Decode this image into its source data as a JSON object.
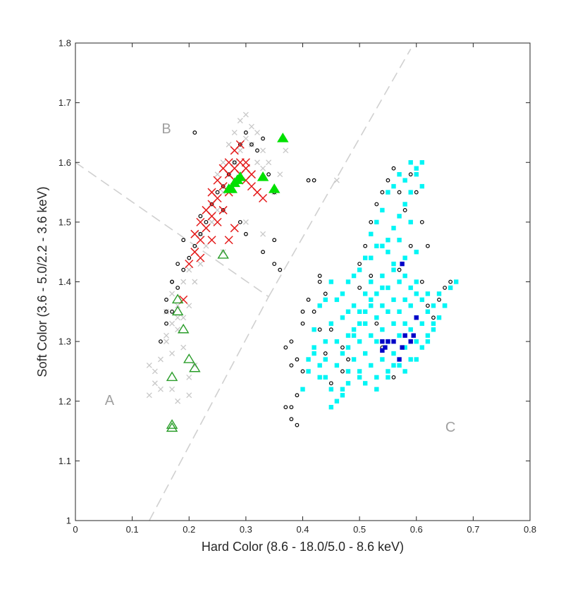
{
  "chart_data": {
    "type": "scatter",
    "xlabel": "Hard Color (8.6 - 18.0/5.0 - 8.6 keV)",
    "ylabel": "Soft Color (3.6 - 5.0/2.2 - 3.6 keV)",
    "xlim": [
      0,
      0.8
    ],
    "ylim": [
      1,
      1.8
    ],
    "xticks": [
      "0",
      "0.1",
      "0.2",
      "0.3",
      "0.4",
      "0.5",
      "0.6",
      "0.7",
      "0.8"
    ],
    "yticks": [
      "1",
      "1.1",
      "1.2",
      "1.3",
      "1.4",
      "1.5",
      "1.6",
      "1.7",
      "1.8"
    ],
    "grid": false,
    "region_labels": [
      {
        "text": "A",
        "x": 0.06,
        "y": 1.2
      },
      {
        "text": "B",
        "x": 0.16,
        "y": 1.655
      },
      {
        "text": "C",
        "x": 0.66,
        "y": 1.155
      }
    ],
    "divider_lines": [
      {
        "x": [
          0,
          0.34
        ],
        "y": [
          1.6,
          1.375
        ]
      },
      {
        "x": [
          0.13,
          0.34
        ],
        "y": [
          1.0,
          1.375
        ]
      },
      {
        "x": [
          0.34,
          0.59
        ],
        "y": [
          1.375,
          1.79
        ]
      }
    ],
    "series": [
      {
        "marker": "gray-x",
        "color": "#c8c8c8",
        "x": [
          0.13,
          0.14,
          0.15,
          0.16,
          0.16,
          0.17,
          0.17,
          0.18,
          0.18,
          0.19,
          0.19,
          0.2,
          0.2,
          0.21,
          0.21,
          0.22,
          0.22,
          0.23,
          0.23,
          0.24,
          0.24,
          0.25,
          0.25,
          0.26,
          0.26,
          0.27,
          0.27,
          0.28,
          0.28,
          0.29,
          0.29,
          0.3,
          0.3,
          0.31,
          0.31,
          0.32,
          0.32,
          0.33,
          0.33,
          0.34,
          0.35,
          0.36,
          0.37,
          0.26,
          0.3,
          0.33,
          0.46,
          0.15,
          0.2,
          0.18,
          0.17,
          0.19,
          0.16,
          0.2,
          0.21,
          0.17,
          0.18,
          0.14,
          0.13
        ],
        "y": [
          1.26,
          1.25,
          1.27,
          1.3,
          1.35,
          1.33,
          1.38,
          1.32,
          1.36,
          1.34,
          1.4,
          1.36,
          1.42,
          1.4,
          1.45,
          1.43,
          1.48,
          1.46,
          1.52,
          1.5,
          1.55,
          1.52,
          1.58,
          1.55,
          1.6,
          1.58,
          1.63,
          1.6,
          1.65,
          1.62,
          1.67,
          1.64,
          1.68,
          1.63,
          1.66,
          1.6,
          1.65,
          1.62,
          1.59,
          1.6,
          1.55,
          1.58,
          1.62,
          1.45,
          1.5,
          1.48,
          1.57,
          1.22,
          1.24,
          1.2,
          1.28,
          1.29,
          1.31,
          1.21,
          1.26,
          1.22,
          1.34,
          1.23,
          1.21
        ]
      },
      {
        "marker": "black-circle",
        "color": "#000000",
        "x": [
          0.15,
          0.16,
          0.16,
          0.17,
          0.17,
          0.18,
          0.19,
          0.2,
          0.21,
          0.22,
          0.22,
          0.23,
          0.24,
          0.25,
          0.26,
          0.27,
          0.28,
          0.29,
          0.3,
          0.31,
          0.32,
          0.33,
          0.34,
          0.35,
          0.26,
          0.29,
          0.3,
          0.33,
          0.35,
          0.36,
          0.41,
          0.42,
          0.43,
          0.38,
          0.39,
          0.4,
          0.37,
          0.38,
          0.39,
          0.4,
          0.41,
          0.42,
          0.43,
          0.44,
          0.45,
          0.46,
          0.47,
          0.48,
          0.5,
          0.51,
          0.52,
          0.53,
          0.54,
          0.55,
          0.56,
          0.57,
          0.58,
          0.59,
          0.6,
          0.61,
          0.62,
          0.57,
          0.58,
          0.59,
          0.6,
          0.61,
          0.62,
          0.63,
          0.64,
          0.65,
          0.66,
          0.55,
          0.56,
          0.57,
          0.5,
          0.52,
          0.53,
          0.54,
          0.56,
          0.58,
          0.6,
          0.45,
          0.47,
          0.38,
          0.39,
          0.4,
          0.37,
          0.38,
          0.45,
          0.44,
          0.43,
          0.35,
          0.21,
          0.19,
          0.18,
          0.17,
          0.16
        ],
        "y": [
          1.3,
          1.33,
          1.37,
          1.35,
          1.4,
          1.39,
          1.42,
          1.44,
          1.46,
          1.48,
          1.51,
          1.5,
          1.53,
          1.55,
          1.56,
          1.58,
          1.6,
          1.63,
          1.65,
          1.63,
          1.62,
          1.64,
          1.58,
          1.55,
          1.52,
          1.5,
          1.48,
          1.45,
          1.43,
          1.42,
          1.57,
          1.57,
          1.41,
          1.3,
          1.27,
          1.25,
          1.19,
          1.17,
          1.16,
          1.33,
          1.37,
          1.35,
          1.32,
          1.28,
          1.22,
          1.2,
          1.25,
          1.27,
          1.43,
          1.46,
          1.5,
          1.53,
          1.55,
          1.57,
          1.59,
          1.55,
          1.52,
          1.58,
          1.55,
          1.5,
          1.46,
          1.42,
          1.44,
          1.46,
          1.38,
          1.4,
          1.36,
          1.34,
          1.37,
          1.39,
          1.4,
          1.35,
          1.3,
          1.27,
          1.39,
          1.41,
          1.33,
          1.29,
          1.24,
          1.25,
          1.27,
          1.32,
          1.29,
          1.19,
          1.21,
          1.35,
          1.29,
          1.26,
          1.23,
          1.38,
          1.4,
          1.47,
          1.65,
          1.47,
          1.43,
          1.4,
          1.35
        ]
      },
      {
        "marker": "red-x",
        "color": "#e41a1a",
        "x": [
          0.19,
          0.2,
          0.21,
          0.21,
          0.22,
          0.22,
          0.23,
          0.23,
          0.24,
          0.24,
          0.24,
          0.25,
          0.25,
          0.25,
          0.26,
          0.26,
          0.26,
          0.27,
          0.27,
          0.27,
          0.28,
          0.28,
          0.28,
          0.29,
          0.29,
          0.29,
          0.3,
          0.3,
          0.3,
          0.31,
          0.31,
          0.32,
          0.33,
          0.28,
          0.27,
          0.24,
          0.22
        ],
        "y": [
          1.37,
          1.43,
          1.45,
          1.48,
          1.5,
          1.47,
          1.52,
          1.49,
          1.53,
          1.51,
          1.55,
          1.5,
          1.54,
          1.57,
          1.52,
          1.56,
          1.59,
          1.55,
          1.58,
          1.6,
          1.57,
          1.59,
          1.62,
          1.58,
          1.6,
          1.63,
          1.57,
          1.6,
          1.59,
          1.56,
          1.58,
          1.55,
          1.54,
          1.49,
          1.47,
          1.47,
          1.44
        ]
      },
      {
        "marker": "green-triangle-open",
        "color": "#2a9d2a",
        "x": [
          0.17,
          0.17,
          0.17,
          0.18,
          0.18,
          0.19,
          0.2,
          0.21,
          0.26
        ],
        "y": [
          1.155,
          1.16,
          1.24,
          1.35,
          1.37,
          1.32,
          1.27,
          1.255,
          1.445
        ]
      },
      {
        "marker": "green-triangle-filled",
        "color": "#00e000",
        "x": [
          0.27,
          0.28,
          0.285,
          0.29,
          0.33,
          0.35,
          0.365,
          0.275
        ],
        "y": [
          1.555,
          1.565,
          1.57,
          1.575,
          1.575,
          1.555,
          1.64,
          1.555
        ]
      },
      {
        "marker": "cyan-square",
        "color": "#00f5f5",
        "x": [
          0.4,
          0.41,
          0.42,
          0.42,
          0.43,
          0.43,
          0.44,
          0.44,
          0.44,
          0.45,
          0.45,
          0.45,
          0.46,
          0.46,
          0.46,
          0.47,
          0.47,
          0.47,
          0.47,
          0.48,
          0.48,
          0.48,
          0.48,
          0.49,
          0.49,
          0.49,
          0.49,
          0.5,
          0.5,
          0.5,
          0.5,
          0.51,
          0.51,
          0.51,
          0.51,
          0.52,
          0.52,
          0.52,
          0.52,
          0.53,
          0.53,
          0.53,
          0.53,
          0.54,
          0.54,
          0.54,
          0.54,
          0.55,
          0.55,
          0.55,
          0.55,
          0.56,
          0.56,
          0.56,
          0.56,
          0.57,
          0.57,
          0.57,
          0.57,
          0.58,
          0.58,
          0.58,
          0.58,
          0.59,
          0.59,
          0.59,
          0.59,
          0.6,
          0.6,
          0.6,
          0.6,
          0.61,
          0.61,
          0.61,
          0.62,
          0.62,
          0.62,
          0.63,
          0.63,
          0.64,
          0.64,
          0.65,
          0.66,
          0.67,
          0.52,
          0.53,
          0.54,
          0.55,
          0.56,
          0.57,
          0.58,
          0.59,
          0.6,
          0.61,
          0.54,
          0.55,
          0.56,
          0.57,
          0.58,
          0.59,
          0.6,
          0.61,
          0.52,
          0.53,
          0.55,
          0.57,
          0.59,
          0.47,
          0.48,
          0.46,
          0.45,
          0.44,
          0.43,
          0.42,
          0.41,
          0.5,
          0.51,
          0.53,
          0.55,
          0.56,
          0.58,
          0.6,
          0.62,
          0.63,
          0.65,
          0.48,
          0.49,
          0.5,
          0.51,
          0.52,
          0.54,
          0.56,
          0.58,
          0.6
        ],
        "y": [
          1.22,
          1.25,
          1.28,
          1.32,
          1.24,
          1.36,
          1.27,
          1.3,
          1.37,
          1.22,
          1.33,
          1.4,
          1.26,
          1.3,
          1.37,
          1.22,
          1.28,
          1.34,
          1.38,
          1.25,
          1.31,
          1.35,
          1.4,
          1.27,
          1.32,
          1.36,
          1.41,
          1.24,
          1.3,
          1.35,
          1.42,
          1.28,
          1.33,
          1.38,
          1.44,
          1.26,
          1.31,
          1.36,
          1.4,
          1.24,
          1.3,
          1.34,
          1.38,
          1.27,
          1.32,
          1.36,
          1.41,
          1.25,
          1.3,
          1.35,
          1.39,
          1.28,
          1.33,
          1.37,
          1.42,
          1.26,
          1.31,
          1.35,
          1.4,
          1.29,
          1.33,
          1.37,
          1.41,
          1.27,
          1.32,
          1.36,
          1.39,
          1.3,
          1.34,
          1.38,
          1.4,
          1.29,
          1.33,
          1.37,
          1.31,
          1.35,
          1.38,
          1.32,
          1.36,
          1.34,
          1.38,
          1.36,
          1.39,
          1.4,
          1.48,
          1.5,
          1.52,
          1.55,
          1.56,
          1.58,
          1.57,
          1.6,
          1.59,
          1.56,
          1.46,
          1.47,
          1.49,
          1.51,
          1.53,
          1.55,
          1.58,
          1.6,
          1.44,
          1.46,
          1.45,
          1.47,
          1.5,
          1.21,
          1.23,
          1.2,
          1.19,
          1.24,
          1.26,
          1.29,
          1.27,
          1.25,
          1.23,
          1.22,
          1.24,
          1.26,
          1.25,
          1.27,
          1.3,
          1.33,
          1.36,
          1.29,
          1.31,
          1.33,
          1.35,
          1.37,
          1.39,
          1.43,
          1.44,
          1.45
        ]
      },
      {
        "marker": "blue-square",
        "color": "#0000c8",
        "x": [
          0.54,
          0.545,
          0.55,
          0.56,
          0.57,
          0.575,
          0.58,
          0.59,
          0.595,
          0.6,
          0.54,
          0.575
        ],
        "y": [
          1.3,
          1.29,
          1.3,
          1.3,
          1.27,
          1.43,
          1.31,
          1.3,
          1.31,
          1.34,
          1.285,
          1.29
        ]
      }
    ]
  }
}
